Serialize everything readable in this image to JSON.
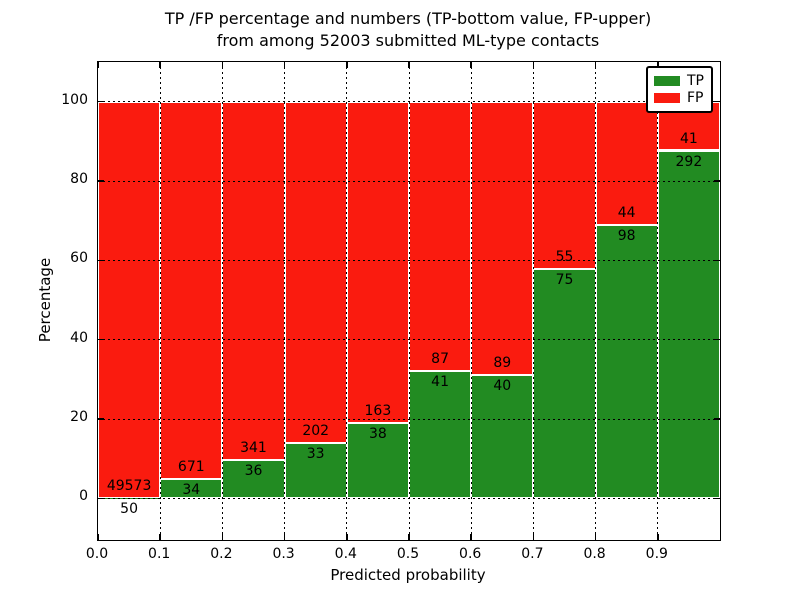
{
  "figure": {
    "title_line1": "TP /FP percentage and numbers (TP-bottom value, FP-upper)",
    "title_line2": "from among 52003 submitted ML-type contacts"
  },
  "chart_data": {
    "type": "bar",
    "subtype": "stacked-100-percent",
    "title": "TP /FP percentage and numbers (TP-bottom value, FP-upper) from among 52003 submitted ML-type contacts",
    "xlabel": "Predicted probability",
    "ylabel": "Percentage",
    "total_contacts": 52003,
    "xlim": [
      0,
      1.0
    ],
    "ylim": [
      -10.5,
      110
    ],
    "x_tick_labels": [
      "0.0",
      "0.1",
      "0.2",
      "0.3",
      "0.4",
      "0.5",
      "0.6",
      "0.7",
      "0.8",
      "0.9"
    ],
    "y_tick_values": [
      0,
      20,
      40,
      60,
      80,
      100
    ],
    "grid": "dotted, both axes, black",
    "legend": {
      "position": "upper right",
      "entries": [
        {
          "label": "TP",
          "color": "#228b22"
        },
        {
          "label": "FP",
          "color": "#fa1b0f"
        }
      ]
    },
    "colors": {
      "tp": "#228b22",
      "fp": "#fa1b0f"
    },
    "bins": [
      {
        "range": [
          0.0,
          0.1
        ],
        "tp": 50,
        "fp": 49573,
        "tp_pct": 0.1
      },
      {
        "range": [
          0.1,
          0.2
        ],
        "tp": 34,
        "fp": 671,
        "tp_pct": 4.8
      },
      {
        "range": [
          0.2,
          0.3
        ],
        "tp": 36,
        "fp": 341,
        "tp_pct": 9.5
      },
      {
        "range": [
          0.3,
          0.4
        ],
        "tp": 33,
        "fp": 202,
        "tp_pct": 14.0
      },
      {
        "range": [
          0.4,
          0.5
        ],
        "tp": 38,
        "fp": 163,
        "tp_pct": 18.9
      },
      {
        "range": [
          0.5,
          0.6
        ],
        "tp": 41,
        "fp": 87,
        "tp_pct": 32.0
      },
      {
        "range": [
          0.6,
          0.7
        ],
        "tp": 40,
        "fp": 89,
        "tp_pct": 31.0
      },
      {
        "range": [
          0.7,
          0.8
        ],
        "tp": 75,
        "fp": 55,
        "tp_pct": 57.7
      },
      {
        "range": [
          0.8,
          0.9
        ],
        "tp": 98,
        "fp": 44,
        "tp_pct": 69.0
      },
      {
        "range": [
          0.9,
          1.0
        ],
        "tp": 292,
        "fp": 41,
        "tp_pct": 87.7
      }
    ]
  }
}
